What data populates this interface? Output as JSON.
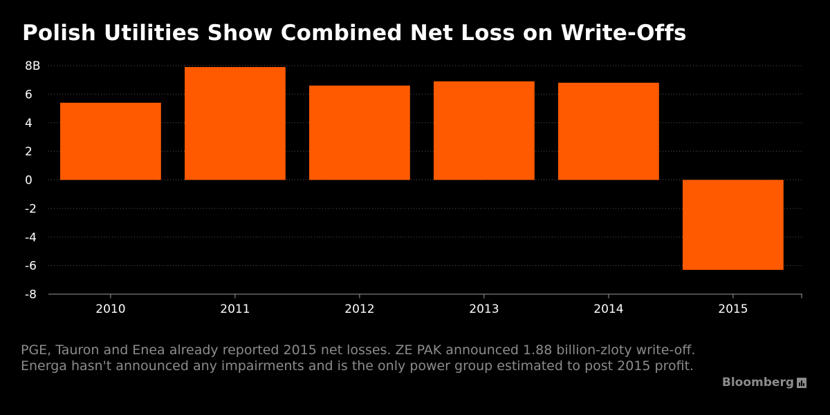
{
  "title": "Polish Utilities Show Combined Net Loss on Write-Offs",
  "footnote": "PGE, Tauron and Enea already reported 2015 net losses. ZE PAK announced 1.88 billion-zloty write-off. Energa hasn't announced any impairments and is the only power group estimated to post 2015 profit.",
  "source_brand": "Bloomberg",
  "brand_icon": "bloomberg-chart-icon",
  "colors": {
    "background": "#000000",
    "bar": "#ff5a00",
    "grid": "#5a5a5a",
    "muted_text": "#8c8c8c"
  },
  "chart_data": {
    "type": "bar",
    "categories": [
      "2010",
      "2011",
      "2012",
      "2013",
      "2014",
      "2015"
    ],
    "values": [
      5.4,
      7.9,
      6.6,
      6.9,
      6.8,
      -6.3
    ],
    "ylim": [
      -8,
      8
    ],
    "yticks": [
      8,
      6,
      4,
      2,
      0,
      -2,
      -4,
      -6,
      -8
    ],
    "ytick_labels": [
      "8B",
      "6",
      "4",
      "2",
      "0",
      "-2",
      "-4",
      "-6",
      "-8"
    ],
    "grid": true,
    "title": "Polish Utilities Show Combined Net Loss on Write-Offs"
  }
}
